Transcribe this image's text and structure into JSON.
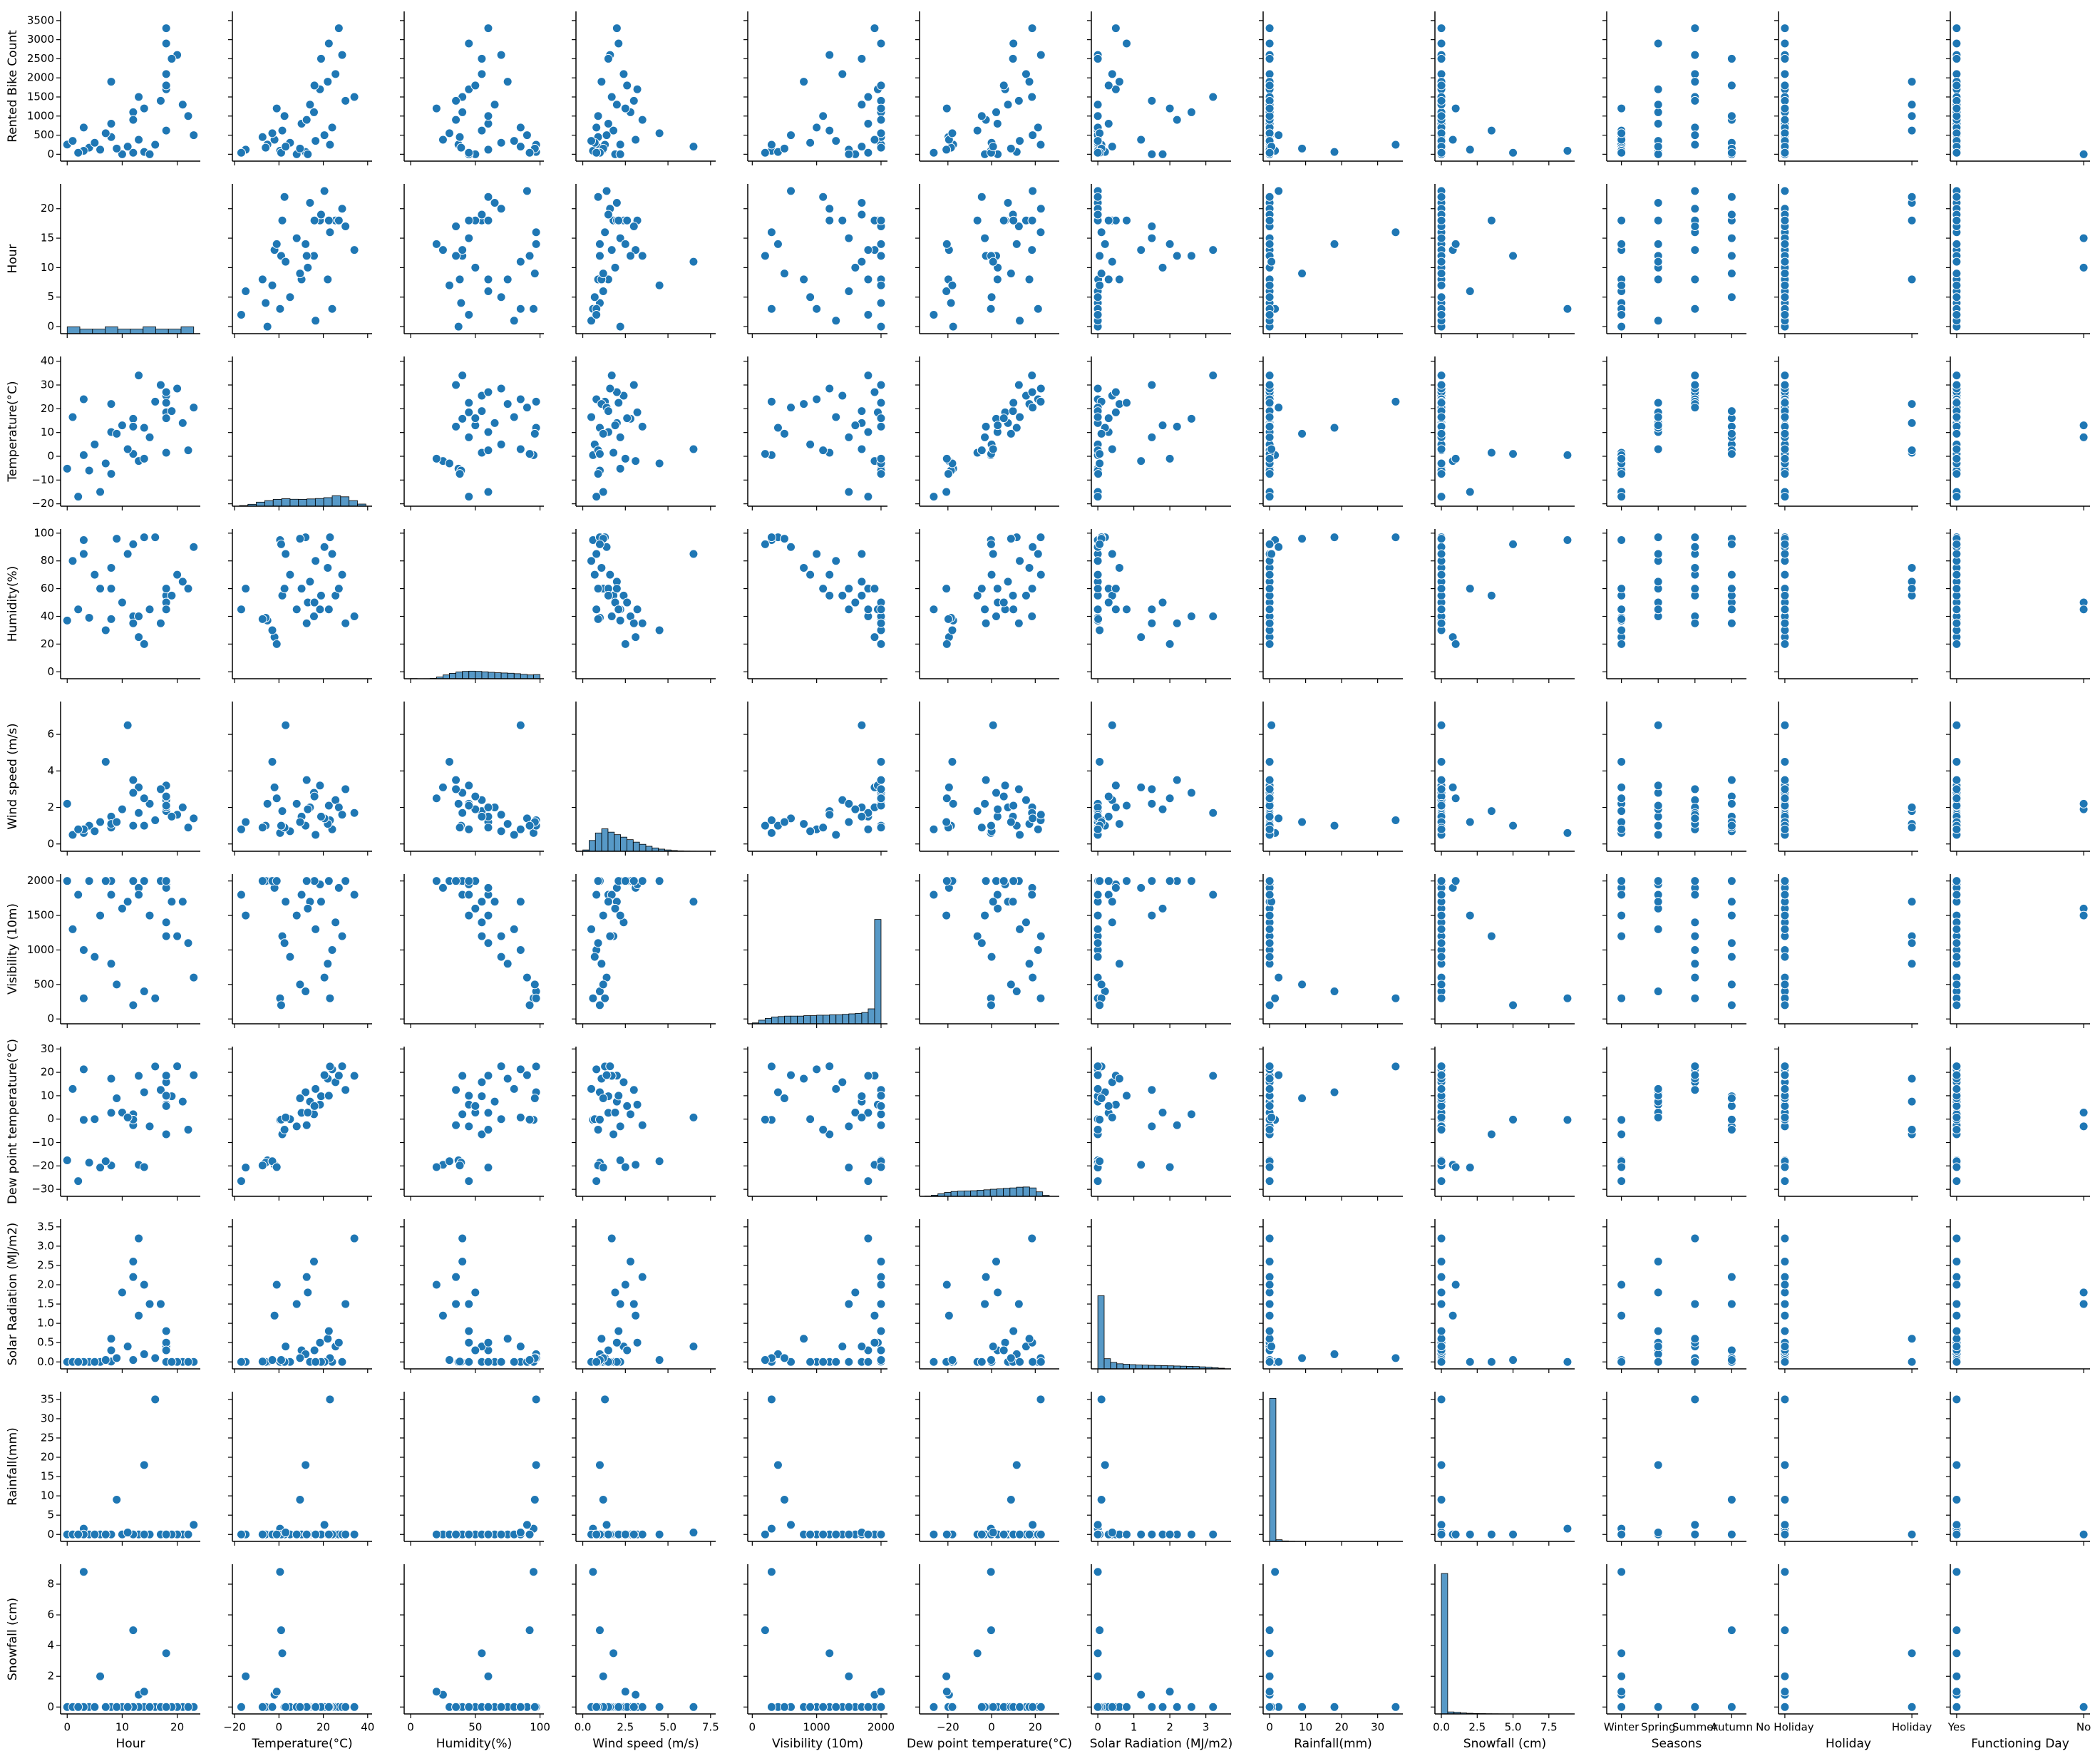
{
  "chart_data": {
    "type": "pairplot",
    "color": "#1f77b4",
    "edgecolor": "#ffffff",
    "variables": [
      {
        "label": "Rented Bike Count",
        "lim": [
          -180,
          3740
        ],
        "yticks": [
          0,
          500,
          1000,
          1500,
          2000,
          2500,
          3000,
          3500
        ]
      },
      {
        "label": "Hour",
        "lim": [
          -1.2,
          24.2
        ],
        "xticks": [
          0,
          10,
          20
        ],
        "yticks": [
          0,
          5,
          10,
          15,
          20
        ],
        "hist": {
          "bins": [
            0,
            2.3,
            4.6,
            6.9,
            9.2,
            11.5,
            13.8,
            16.1,
            18.4,
            20.7,
            23
          ],
          "counts": [
            1095,
            730,
            730,
            1095,
            730,
            730,
            1095,
            730,
            730,
            1095
          ],
          "ylim": [
            0,
            24000
          ]
        }
      },
      {
        "label": "Temperature(°C)",
        "lim": [
          -21,
          42
        ],
        "xticks": [
          {
            "value": -20,
            "label": "−20"
          },
          0,
          20,
          40
        ],
        "yticks": [
          {
            "value": -20,
            "label": "−20"
          },
          {
            "value": -10,
            "label": "−10"
          },
          0,
          10,
          20,
          30,
          40
        ],
        "hist": {
          "bins": [
            -17.8,
            -14,
            -10.2,
            -6.4,
            -2.6,
            1.2,
            5,
            8.8,
            12.6,
            16.4,
            20.2,
            24,
            27.8,
            31.6,
            35.4,
            39.2
          ],
          "counts": [
            60,
            180,
            380,
            520,
            640,
            700,
            650,
            640,
            680,
            720,
            800,
            980,
            880,
            520,
            200
          ],
          "ylim": [
            0,
            14000
          ]
        }
      },
      {
        "label": "Humidity(%)",
        "lim": [
          -5,
          103
        ],
        "xticks": [
          0,
          50,
          100
        ],
        "yticks": [
          0,
          20,
          40,
          60,
          80,
          100
        ],
        "hist": {
          "bins": [
            0,
            5,
            10,
            15,
            20,
            25,
            30,
            35,
            40,
            45,
            50,
            55,
            60,
            65,
            70,
            75,
            80,
            85,
            90,
            95,
            100
          ],
          "counts": [
            17,
            0,
            8,
            40,
            150,
            330,
            470,
            590,
            640,
            660,
            640,
            600,
            560,
            520,
            500,
            480,
            440,
            380,
            330,
            360
          ],
          "ylim": [
            0,
            13000
          ]
        }
      },
      {
        "label": "Wind speed (m/s)",
        "lim": [
          -0.4,
          7.8
        ],
        "xticks": [
          {
            "value": 0,
            "label": "0.0"
          },
          2.5,
          {
            "value": 5,
            "label": "5.0"
          },
          7.5
        ],
        "yticks": [
          0,
          2,
          4,
          6
        ],
        "hist": {
          "bins": [
            0,
            0.37,
            0.74,
            1.11,
            1.48,
            1.85,
            2.22,
            2.59,
            2.96,
            3.33,
            3.7,
            4.07,
            4.44,
            4.81,
            5.18,
            5.55,
            5.92,
            6.29,
            6.66,
            7.03,
            7.4
          ],
          "counts": [
            80,
            650,
            1100,
            1350,
            1150,
            1000,
            850,
            700,
            550,
            420,
            300,
            200,
            130,
            80,
            45,
            25,
            12,
            6,
            3,
            2
          ],
          "ylim": [
            0,
            9000
          ]
        }
      },
      {
        "label": "Visibility (10m)",
        "lim": [
          -70,
          2100
        ],
        "xticks": [
          0,
          1000,
          2000
        ],
        "yticks": [
          0,
          500,
          1000,
          1500,
          2000
        ],
        "hist": {
          "bins": [
            0,
            100,
            200,
            300,
            400,
            500,
            600,
            700,
            800,
            900,
            1000,
            1100,
            1200,
            1300,
            1400,
            1500,
            1600,
            1700,
            1800,
            1900,
            2000
          ],
          "counts": [
            20,
            80,
            120,
            150,
            160,
            170,
            170,
            170,
            180,
            180,
            190,
            190,
            200,
            200,
            210,
            220,
            230,
            250,
            330,
            2300
          ],
          "ylim": [
            0,
            3300
          ]
        }
      },
      {
        "label": "Dew point temperature(°C)",
        "lim": [
          -33,
          31
        ],
        "xticks": [
          {
            "value": -20,
            "label": "−20"
          },
          0,
          20
        ],
        "yticks": [
          {
            "value": -30,
            "label": "−30"
          },
          {
            "value": -20,
            "label": "−20"
          },
          {
            "value": -10,
            "label": "−10"
          },
          0,
          10,
          20,
          30
        ],
        "hist": {
          "bins": [
            -30.6,
            -27.6,
            -24.6,
            -21.6,
            -18.6,
            -15.6,
            -12.6,
            -9.6,
            -6.6,
            -3.6,
            -0.6,
            2.4,
            5.4,
            8.4,
            11.4,
            14.4,
            17.4,
            20.4,
            23.4,
            26.4
          ],
          "counts": [
            30,
            120,
            280,
            420,
            520,
            560,
            580,
            600,
            650,
            700,
            760,
            800,
            860,
            900,
            980,
            1000,
            900,
            480,
            100
          ],
          "ylim": [
            0,
            16000
          ]
        }
      },
      {
        "label": "Solar Radiation (MJ/m2)",
        "lim": [
          -0.18,
          3.7
        ],
        "xticks": [
          0,
          1,
          2,
          3
        ],
        "yticks": [
          {
            "value": 0,
            "label": "0.0"
          },
          0.5,
          {
            "value": 1,
            "label": "1.0"
          },
          1.5,
          {
            "value": 2,
            "label": "2.0"
          },
          2.5,
          {
            "value": 3,
            "label": "3.0"
          },
          3.5
        ],
        "hist": {
          "bins": [
            0,
            0.176,
            0.352,
            0.528,
            0.704,
            0.88,
            1.056,
            1.232,
            1.408,
            1.584,
            1.76,
            1.936,
            2.112,
            2.288,
            2.464,
            2.64,
            2.816,
            2.992,
            3.168,
            3.344,
            3.52
          ],
          "counts": [
            4300,
            600,
            380,
            300,
            270,
            250,
            230,
            220,
            210,
            200,
            190,
            180,
            170,
            160,
            150,
            140,
            120,
            100,
            70,
            40
          ],
          "ylim": [
            0,
            8800
          ]
        }
      },
      {
        "label": "Rainfall(mm)",
        "lim": [
          -1.8,
          37
        ],
        "xticks": [
          0,
          10,
          20,
          30
        ],
        "yticks": [
          0,
          5,
          10,
          15,
          20,
          25,
          30,
          35
        ],
        "hist": {
          "bins": [
            0,
            1.75,
            3.5,
            5.25,
            7,
            8.75,
            10.5,
            12.25,
            14,
            15.75,
            17.5,
            19.25,
            21,
            22.75,
            24.5,
            26.25,
            28,
            29.75,
            31.5,
            33.25,
            35
          ],
          "counts": [
            8600,
            100,
            30,
            15,
            8,
            4,
            2,
            1,
            1,
            1,
            0,
            1,
            0,
            0,
            0,
            0,
            0,
            0,
            0,
            1
          ],
          "ylim": [
            0,
            9000
          ]
        }
      },
      {
        "label": "Snowfall (cm)",
        "lim": [
          -0.45,
          9.3
        ],
        "xticks": [
          {
            "value": 0,
            "label": "0.0"
          },
          2.5,
          {
            "value": 5,
            "label": "5.0"
          },
          7.5
        ],
        "yticks": [
          0,
          2,
          4,
          6,
          8
        ],
        "hist": {
          "bins": [
            0,
            0.44,
            0.88,
            1.32,
            1.76,
            2.2,
            2.64,
            3.08,
            3.52,
            3.96,
            4.4,
            4.84,
            5.28,
            5.72,
            6.16,
            6.6,
            7.04,
            7.48,
            7.92,
            8.36,
            8.8
          ],
          "counts": [
            8350,
            120,
            100,
            60,
            40,
            30,
            20,
            12,
            8,
            5,
            4,
            3,
            2,
            1,
            1,
            1,
            1,
            0,
            0,
            2
          ],
          "ylim": [
            0,
            8900
          ]
        }
      },
      {
        "label": "Seasons",
        "categories": [
          "Winter",
          "Spring",
          "Summer",
          "Autumn"
        ],
        "lim": [
          -0.4,
          3.4
        ]
      },
      {
        "label": "Holiday",
        "categories": [
          "No Holiday",
          "Holiday"
        ],
        "lim": [
          -0.05,
          1.05
        ]
      },
      {
        "label": "Functioning Day",
        "categories": [
          "Yes",
          "No"
        ],
        "lim": [
          -0.05,
          1.05
        ]
      }
    ],
    "observations": [
      [
        254,
        0,
        -5.2,
        37,
        2.2,
        2000,
        -17.6,
        0,
        0,
        0,
        "Winter",
        "No Holiday",
        "Yes"
      ],
      [
        173,
        4,
        -6.0,
        39,
        1.0,
        2000,
        -18.6,
        0,
        0,
        0,
        "Winter",
        "No Holiday",
        "Yes"
      ],
      [
        450,
        8,
        -7.4,
        38,
        0.9,
        2000,
        -19.8,
        0.01,
        0,
        0,
        "Winter",
        "No Holiday",
        "Yes"
      ],
      [
        380,
        13,
        -2.0,
        25,
        3.1,
        1900,
        -19.5,
        1.2,
        0,
        0.8,
        "Winter",
        "No Holiday",
        "Yes"
      ],
      [
        620,
        18,
        1.5,
        55,
        1.8,
        1200,
        -6.5,
        0,
        0,
        3.5,
        "Winter",
        "Holiday",
        "Yes"
      ],
      [
        120,
        6,
        -15.0,
        60,
        1.2,
        1500,
        -20.7,
        0,
        0,
        2.0,
        "Winter",
        "No Holiday",
        "Yes"
      ],
      [
        90,
        3,
        0.5,
        95,
        0.6,
        300,
        -0.3,
        0,
        1.5,
        8.8,
        "Winter",
        "No Holiday",
        "Yes"
      ],
      [
        800,
        8,
        10.2,
        60,
        1.5,
        1800,
        2.7,
        0.3,
        0,
        0,
        "Spring",
        "No Holiday",
        "Yes"
      ],
      [
        1100,
        12,
        15.8,
        40,
        2.8,
        2000,
        2.1,
        2.6,
        0,
        0,
        "Spring",
        "No Holiday",
        "Yes"
      ],
      [
        1700,
        18,
        18.5,
        45,
        3.2,
        1950,
        6.2,
        0.5,
        0,
        0,
        "Spring",
        "No Holiday",
        "Yes"
      ],
      [
        60,
        14,
        12.0,
        97,
        1.0,
        400,
        11.5,
        0.2,
        18.0,
        0,
        "Spring",
        "No Holiday",
        "Yes"
      ],
      [
        1300,
        21,
        14.0,
        65,
        2.0,
        1700,
        7.5,
        0,
        0,
        0,
        "Spring",
        "Holiday",
        "Yes"
      ],
      [
        0,
        10,
        13.0,
        50,
        1.9,
        1600,
        2.8,
        1.8,
        0,
        0,
        "Spring",
        "No Holiday",
        "No"
      ],
      [
        2100,
        18,
        25.5,
        55,
        2.4,
        1400,
        15.8,
        0.4,
        0,
        0,
        "Summer",
        "No Holiday",
        "Yes"
      ],
      [
        3300,
        18,
        27.0,
        60,
        2.0,
        1900,
        18.6,
        0.5,
        0,
        0,
        "Summer",
        "No Holiday",
        "Yes"
      ],
      [
        1500,
        13,
        34.0,
        40,
        1.7,
        1800,
        18.5,
        3.2,
        0,
        0,
        "Summer",
        "No Holiday",
        "Yes"
      ],
      [
        700,
        3,
        24.0,
        85,
        0.8,
        1000,
        21.3,
        0,
        0,
        0,
        "Summer",
        "No Holiday",
        "Yes"
      ],
      [
        250,
        16,
        23.0,
        97,
        1.3,
        300,
        22.5,
        0.1,
        35.0,
        0,
        "Summer",
        "No Holiday",
        "Yes"
      ],
      [
        2600,
        20,
        28.5,
        70,
        1.6,
        1200,
        22.6,
        0,
        0,
        0,
        "Summer",
        "No Holiday",
        "Yes"
      ],
      [
        1900,
        8,
        22.0,
        75,
        1.1,
        800,
        17.3,
        0.6,
        0,
        0,
        "Summer",
        "Holiday",
        "Yes"
      ],
      [
        500,
        23,
        20.5,
        90,
        1.4,
        600,
        18.8,
        0,
        2.5,
        0,
        "Summer",
        "No Holiday",
        "Yes"
      ],
      [
        1800,
        18,
        16.0,
        50,
        2.6,
        2000,
        5.6,
        0.3,
        0,
        0,
        "Autumn",
        "No Holiday",
        "Yes"
      ],
      [
        2500,
        19,
        19.0,
        55,
        1.5,
        1700,
        9.8,
        0,
        0,
        0,
        "Autumn",
        "No Holiday",
        "Yes"
      ],
      [
        900,
        12,
        12.5,
        35,
        3.5,
        2000,
        -2.6,
        2.2,
        0,
        0,
        "Autumn",
        "No Holiday",
        "Yes"
      ],
      [
        300,
        5,
        5.0,
        70,
        0.7,
        900,
        0.0,
        0,
        0,
        0,
        "Autumn",
        "No Holiday",
        "Yes"
      ],
      [
        0,
        15,
        8.0,
        45,
        2.2,
        1500,
        -3.1,
        1.5,
        0,
        0,
        "Autumn",
        "No Holiday",
        "No"
      ],
      [
        150,
        9,
        9.5,
        96,
        1.2,
        500,
        8.9,
        0.1,
        9.0,
        0,
        "Autumn",
        "No Holiday",
        "Yes"
      ],
      [
        1000,
        22,
        2.5,
        60,
        0.9,
        1100,
        -4.5,
        0,
        0,
        0,
        "Autumn",
        "Holiday",
        "Yes"
      ],
      [
        40,
        12,
        1.0,
        92,
        1.0,
        200,
        -0.2,
        0.05,
        0,
        5.0,
        "Autumn",
        "No Holiday",
        "Yes"
      ],
      [
        550,
        7,
        -3.0,
        30,
        4.5,
        2000,
        -18.0,
        0.05,
        0,
        0,
        "Winter",
        "No Holiday",
        "Yes"
      ],
      [
        1400,
        17,
        30.0,
        35,
        3.0,
        2000,
        12.5,
        1.5,
        0,
        0,
        "Summer",
        "No Holiday",
        "Yes"
      ],
      [
        2900,
        18,
        22.5,
        45,
        2.1,
        2000,
        10.0,
        0.8,
        0,
        0,
        "Spring",
        "No Holiday",
        "Yes"
      ],
      [
        350,
        1,
        16.5,
        80,
        0.5,
        1300,
        12.9,
        0,
        0,
        0,
        "Spring",
        "No Holiday",
        "Yes"
      ],
      [
        200,
        11,
        3.0,
        85,
        6.5,
        1700,
        0.7,
        0.4,
        0.5,
        0,
        "Spring",
        "No Holiday",
        "Yes"
      ],
      [
        1200,
        14,
        -1.0,
        20,
        2.5,
        2000,
        -20.5,
        2.0,
        0,
        1.0,
        "Winter",
        "No Holiday",
        "Yes"
      ],
      [
        40,
        2,
        -17.0,
        45,
        0.8,
        1800,
        -26.5,
        0,
        0,
        0,
        "Winter",
        "No Holiday",
        "Yes"
      ]
    ]
  }
}
